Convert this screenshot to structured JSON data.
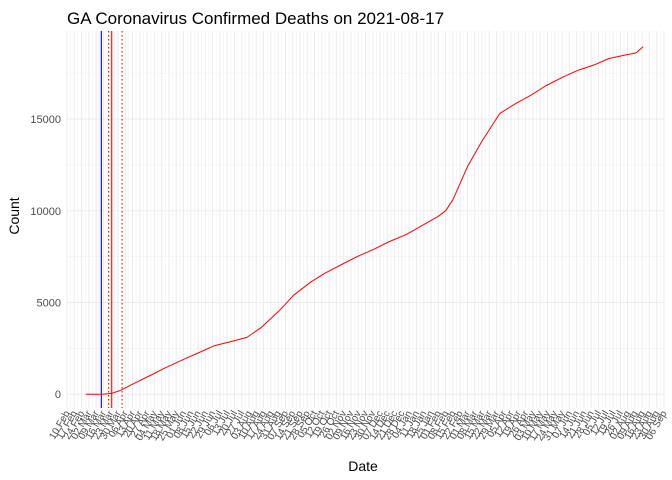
{
  "chart_data": {
    "type": "line",
    "title": "GA Coronavirus Confirmed Deaths on 2021-08-17",
    "xlabel": "Date",
    "ylabel": "Count",
    "x_range": [
      "2020-02-10",
      "2021-09-06"
    ],
    "ylim": [
      -750,
      19800
    ],
    "y_ticks": [
      0,
      5000,
      10000,
      15000
    ],
    "x_ticks": [
      "10 Feb",
      "17 Feb",
      "24 Feb",
      "02 Mar",
      "09 Mar",
      "16 Mar",
      "23 Mar",
      "30 Mar",
      "06 Apr",
      "13 Apr",
      "20 Apr",
      "27 Apr",
      "04 May",
      "11 May",
      "18 May",
      "25 May",
      "01 Jun",
      "08 Jun",
      "15 Jun",
      "22 Jun",
      "29 Jun",
      "06 Jul",
      "13 Jul",
      "20 Jul",
      "27 Jul",
      "03 Aug",
      "10 Aug",
      "17 Aug",
      "24 Aug",
      "31 Aug",
      "07 Sep",
      "14 Sep",
      "21 Sep",
      "28 Sep",
      "05 Oct",
      "12 Oct",
      "19 Oct",
      "26 Oct",
      "02 Nov",
      "09 Nov",
      "16 Nov",
      "23 Nov",
      "30 Nov",
      "07 Dec",
      "14 Dec",
      "21 Dec",
      "28 Dec",
      "04 Jan",
      "11 Jan",
      "18 Jan",
      "25 Jan",
      "01 Feb",
      "08 Feb",
      "15 Feb",
      "22 Feb",
      "01 Mar",
      "08 Mar",
      "15 Mar",
      "22 Mar",
      "29 Mar",
      "05 Apr",
      "12 Apr",
      "19 Apr",
      "26 Apr",
      "03 May",
      "10 May",
      "17 May",
      "24 May",
      "31 May",
      "07 Jun",
      "14 Jun",
      "21 Jun",
      "28 Jun",
      "05 Jul",
      "12 Jul",
      "19 Jul",
      "26 Jul",
      "02 Aug",
      "09 Aug",
      "16 Aug",
      "23 Aug",
      "30 Aug",
      "06 Sep"
    ],
    "grid": true,
    "series": [
      {
        "color": "#ff0000",
        "points": [
          [
            "2020-02-28",
            0
          ],
          [
            "2020-03-10",
            0
          ],
          [
            "2020-03-17",
            10
          ],
          [
            "2020-03-24",
            50
          ],
          [
            "2020-04-01",
            200
          ],
          [
            "2020-04-15",
            600
          ],
          [
            "2020-05-01",
            1050
          ],
          [
            "2020-05-15",
            1450
          ],
          [
            "2020-06-01",
            1900
          ],
          [
            "2020-06-15",
            2250
          ],
          [
            "2020-07-01",
            2650
          ],
          [
            "2020-07-15",
            2850
          ],
          [
            "2020-08-01",
            3100
          ],
          [
            "2020-08-15",
            3650
          ],
          [
            "2020-09-01",
            4550
          ],
          [
            "2020-09-15",
            5400
          ],
          [
            "2020-10-01",
            6100
          ],
          [
            "2020-10-15",
            6600
          ],
          [
            "2020-11-01",
            7100
          ],
          [
            "2020-11-15",
            7500
          ],
          [
            "2020-12-01",
            7900
          ],
          [
            "2020-12-15",
            8300
          ],
          [
            "2021-01-01",
            8700
          ],
          [
            "2021-01-15",
            9150
          ],
          [
            "2021-02-01",
            9700
          ],
          [
            "2021-02-08",
            10000
          ],
          [
            "2021-02-15",
            10600
          ],
          [
            "2021-03-01",
            12400
          ],
          [
            "2021-03-15",
            13800
          ],
          [
            "2021-04-01",
            15300
          ],
          [
            "2021-04-15",
            15800
          ],
          [
            "2021-05-01",
            16300
          ],
          [
            "2021-05-15",
            16800
          ],
          [
            "2021-06-01",
            17300
          ],
          [
            "2021-06-15",
            17650
          ],
          [
            "2021-07-01",
            17950
          ],
          [
            "2021-07-15",
            18300
          ],
          [
            "2021-08-01",
            18500
          ],
          [
            "2021-08-10",
            18600
          ],
          [
            "2021-08-17",
            18950
          ]
        ]
      }
    ],
    "reference_lines": [
      {
        "date": "2020-03-14",
        "color": "#0000ff",
        "style": "solid"
      },
      {
        "date": "2020-03-21",
        "color": "#ff0000",
        "style": "dotted"
      },
      {
        "date": "2020-03-24",
        "color": "#ff0000",
        "style": "solid"
      },
      {
        "date": "2020-04-03",
        "color": "#ff0000",
        "style": "dotted"
      }
    ]
  }
}
